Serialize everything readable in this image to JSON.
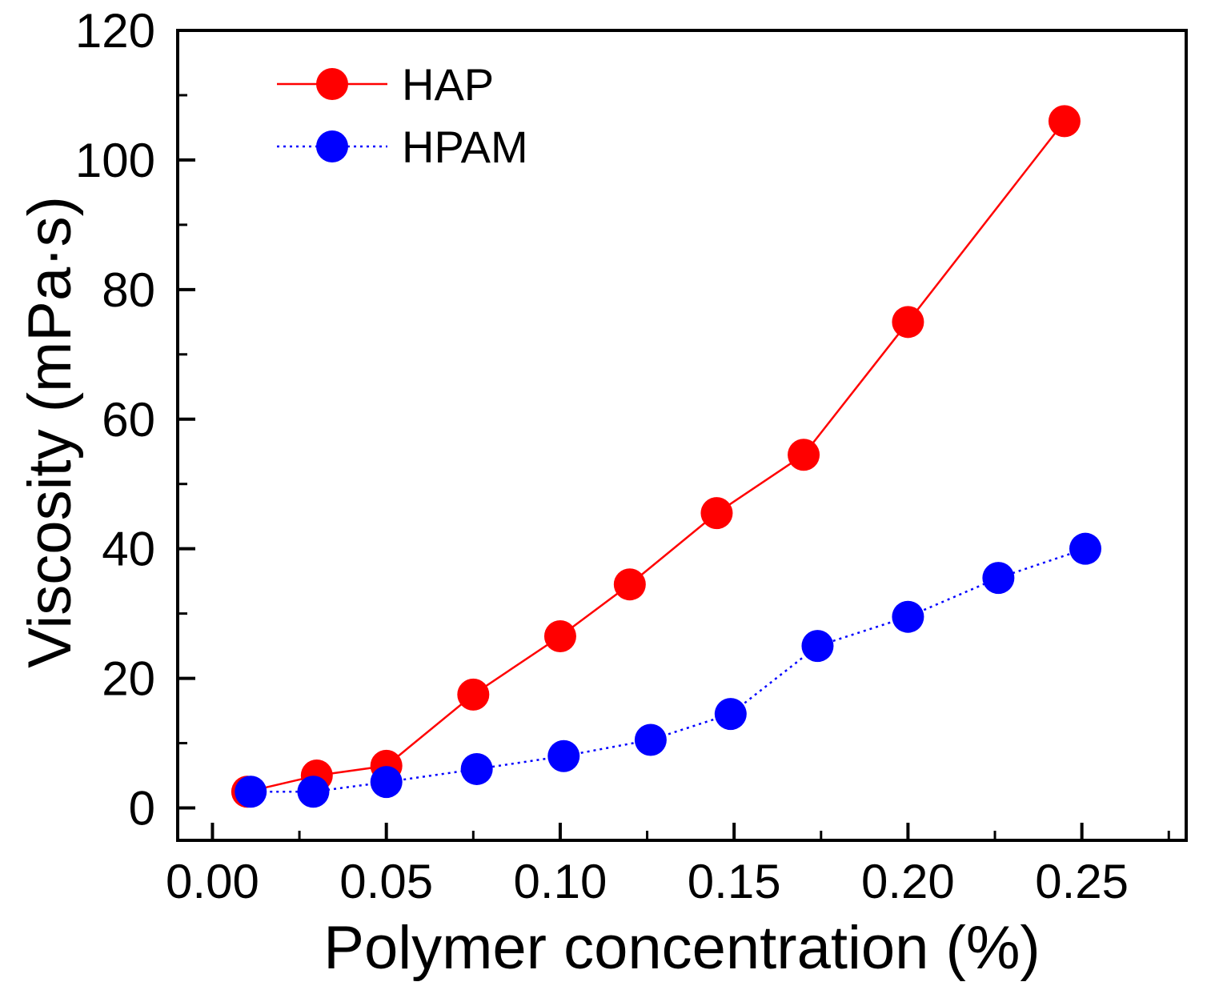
{
  "chart_data": {
    "type": "line",
    "title": "",
    "xlabel": "Polymer concentration (%)",
    "ylabel": "Viscosity (mPa·s)",
    "xlim": [
      -0.01,
      0.28
    ],
    "ylim": [
      -5,
      120
    ],
    "x_ticks": [
      0.0,
      0.05,
      0.1,
      0.15,
      0.2,
      0.25
    ],
    "x_tick_labels": [
      "0.00",
      "0.05",
      "0.10",
      "0.15",
      "0.20",
      "0.25"
    ],
    "x_minor_ticks": [
      0.025,
      0.075,
      0.125,
      0.175,
      0.225,
      0.275
    ],
    "y_ticks": [
      0,
      20,
      40,
      60,
      80,
      100,
      120
    ],
    "y_tick_labels": [
      "0",
      "20",
      "40",
      "60",
      "80",
      "100",
      "120"
    ],
    "y_minor_ticks": [
      10,
      30,
      50,
      70,
      90,
      110
    ],
    "legend_position": "top-left",
    "grid": false,
    "series": [
      {
        "name": "HAP",
        "color": "#ff0000",
        "line_style": "solid",
        "marker": "circle",
        "x": [
          0.01,
          0.03,
          0.05,
          0.075,
          0.1,
          0.12,
          0.145,
          0.17,
          0.2,
          0.245
        ],
        "y": [
          2.5,
          5,
          6.5,
          17.5,
          26.5,
          34.5,
          45.5,
          54.5,
          75,
          106
        ]
      },
      {
        "name": "HPAM",
        "color": "#0000ff",
        "line_style": "dotted",
        "marker": "circle",
        "x": [
          0.011,
          0.029,
          0.05,
          0.076,
          0.101,
          0.126,
          0.149,
          0.174,
          0.2,
          0.226,
          0.251
        ],
        "y": [
          2.5,
          2.5,
          4,
          6,
          8,
          10.5,
          14.5,
          25,
          29.5,
          35.5,
          40
        ]
      }
    ]
  }
}
